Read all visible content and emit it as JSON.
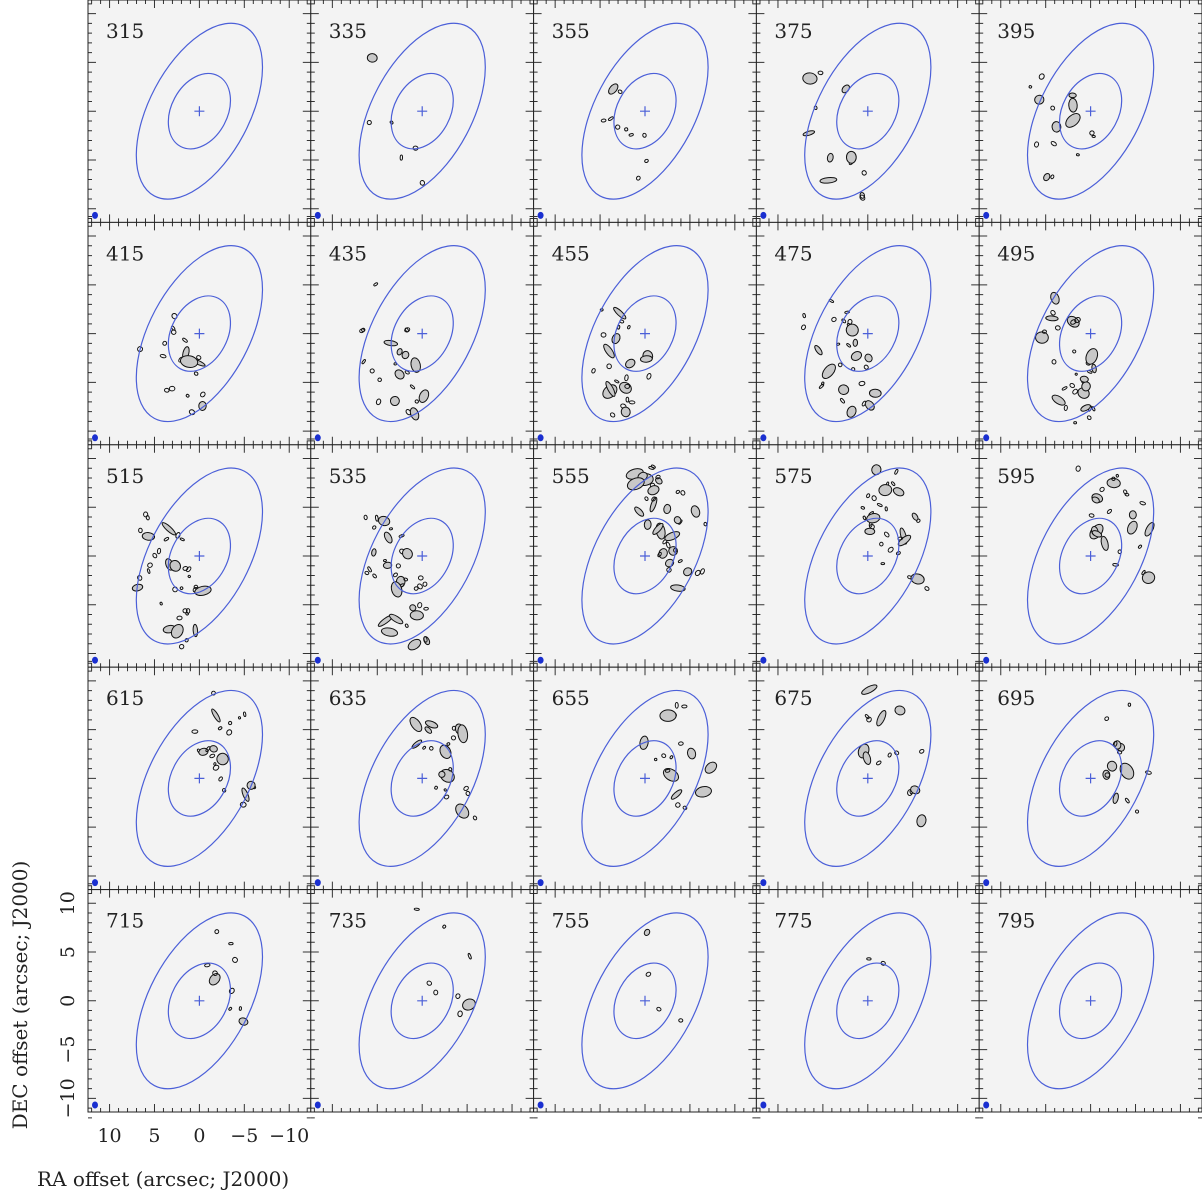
{
  "panels": [
    {
      "label": "315"
    },
    {
      "label": "335"
    },
    {
      "label": "355"
    },
    {
      "label": "375"
    },
    {
      "label": "395"
    },
    {
      "label": "415"
    },
    {
      "label": "435"
    },
    {
      "label": "455"
    },
    {
      "label": "475"
    },
    {
      "label": "495"
    },
    {
      "label": "515"
    },
    {
      "label": "535"
    },
    {
      "label": "555"
    },
    {
      "label": "575"
    },
    {
      "label": "595"
    },
    {
      "label": "615"
    },
    {
      "label": "635"
    },
    {
      "label": "655"
    },
    {
      "label": "675"
    },
    {
      "label": "695"
    },
    {
      "label": "715"
    },
    {
      "label": "735"
    },
    {
      "label": "755"
    },
    {
      "label": "775"
    },
    {
      "label": "795"
    }
  ],
  "x_axis": {
    "label": "RA offset (arcsec; J2000)",
    "lim": [
      12.4,
      -12.4
    ],
    "ticks": [
      10,
      5,
      0,
      {
        "value": -5,
        "label": "−5"
      },
      {
        "value": -10,
        "label": "−10"
      }
    ]
  },
  "y_axis": {
    "label": "DEC offset (arcsec; J2000)",
    "lim": [
      -11.4,
      11.4
    ],
    "ticks": [
      {
        "value": -10,
        "label": "−10"
      },
      {
        "value": -5,
        "label": "−5"
      },
      0,
      5,
      10
    ]
  }
}
